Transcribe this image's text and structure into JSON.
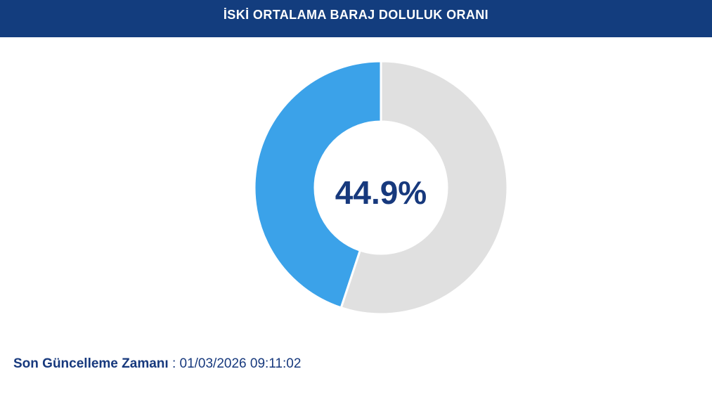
{
  "header": {
    "title": "İSKİ ORTALAMA BARAJ DOLULUK ORANI",
    "background_color": "#133d7e",
    "text_color": "#ffffff"
  },
  "chart_data": {
    "type": "pie",
    "subtype": "donut",
    "title": "İSKİ ORTALAMA BARAJ DOLULUK ORANI",
    "center_label": "44.9%",
    "slices": [
      {
        "name": "filled",
        "value": 44.9,
        "color": "#3ba2e9"
      },
      {
        "name": "remainder",
        "value": 55.1,
        "color": "#e0e0e0"
      }
    ],
    "start_position": "top",
    "direction": "counterclockwise",
    "hole_ratio": 0.52,
    "segment_border_color": "#ffffff",
    "segment_border_width": 3,
    "legend": "none",
    "center_label_color": "#17397d"
  },
  "footer": {
    "label": "Son Güncelleme Zamanı",
    "separator": " : ",
    "value": "01/03/2026 09:11:02",
    "color": "#17397d"
  }
}
